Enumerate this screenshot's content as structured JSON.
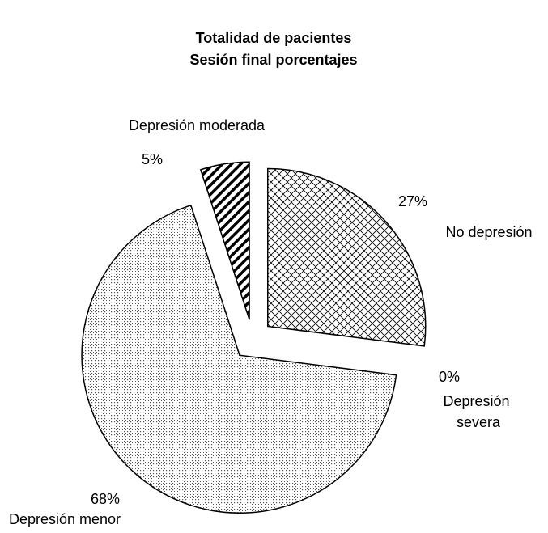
{
  "chart_data": {
    "type": "pie",
    "title": "Totalidad de pacientes",
    "subtitle": "Sesión final porcentajes",
    "categories": [
      "No depresión",
      "Depresión severa",
      "Depresión menor",
      "Depresión moderada"
    ],
    "values": [
      27,
      0,
      68,
      5
    ],
    "value_labels": [
      "27%",
      "0%",
      "68%",
      "5%"
    ]
  }
}
